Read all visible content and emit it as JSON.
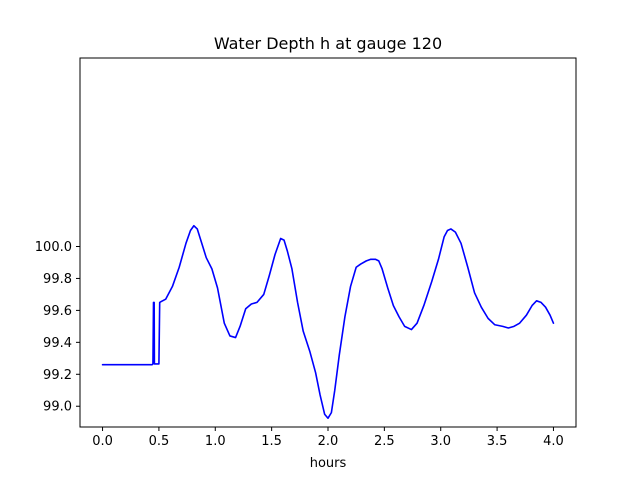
{
  "chart_data": {
    "type": "line",
    "title": "Water Depth h at gauge 120",
    "xlabel": "hours",
    "ylabel": "",
    "xlim": [
      -0.2,
      4.2
    ],
    "ylim": [
      98.87,
      101.18
    ],
    "grid": false,
    "legend": "none",
    "x_ticks": [
      0.0,
      0.5,
      1.0,
      1.5,
      2.0,
      2.5,
      3.0,
      3.5,
      4.0
    ],
    "x_tick_labels": [
      "0.0",
      "0.5",
      "1.0",
      "1.5",
      "2.0",
      "2.5",
      "3.0",
      "3.5",
      "4.0"
    ],
    "y_ticks": [
      99.0,
      99.2,
      99.4,
      99.6,
      99.8,
      100.0
    ],
    "y_tick_labels": [
      "99.0",
      "99.2",
      "99.4",
      "99.6",
      "99.8",
      "100.0"
    ],
    "series": [
      {
        "color": "#0000ff",
        "x": [
          0.0,
          0.44,
          0.447,
          0.452,
          0.458,
          0.46,
          0.5,
          0.507,
          0.52,
          0.56,
          0.62,
          0.68,
          0.74,
          0.78,
          0.81,
          0.84,
          0.88,
          0.92,
          0.97,
          1.02,
          1.08,
          1.13,
          1.18,
          1.22,
          1.27,
          1.32,
          1.37,
          1.43,
          1.48,
          1.53,
          1.58,
          1.61,
          1.64,
          1.68,
          1.73,
          1.78,
          1.84,
          1.89,
          1.93,
          1.97,
          2.0,
          2.03,
          2.06,
          2.1,
          2.15,
          2.2,
          2.25,
          2.29,
          2.34,
          2.38,
          2.42,
          2.45,
          2.48,
          2.53,
          2.58,
          2.63,
          2.68,
          2.74,
          2.79,
          2.85,
          2.92,
          2.98,
          3.03,
          3.06,
          3.09,
          3.13,
          3.18,
          3.24,
          3.3,
          3.36,
          3.42,
          3.48,
          3.55,
          3.6,
          3.65,
          3.7,
          3.76,
          3.81,
          3.85,
          3.89,
          3.93,
          3.97,
          4.0
        ],
        "y": [
          99.26,
          99.26,
          99.265,
          99.65,
          99.65,
          99.265,
          99.265,
          99.65,
          99.655,
          99.67,
          99.75,
          99.87,
          100.02,
          100.1,
          100.13,
          100.11,
          100.02,
          99.93,
          99.86,
          99.74,
          99.52,
          99.44,
          99.43,
          99.5,
          99.61,
          99.64,
          99.65,
          99.7,
          99.82,
          99.95,
          100.05,
          100.04,
          99.97,
          99.86,
          99.65,
          99.47,
          99.34,
          99.21,
          99.07,
          98.95,
          98.925,
          98.96,
          99.1,
          99.32,
          99.56,
          99.75,
          99.87,
          99.89,
          99.91,
          99.92,
          99.92,
          99.91,
          99.86,
          99.74,
          99.63,
          99.56,
          99.5,
          99.48,
          99.52,
          99.63,
          99.78,
          99.92,
          100.06,
          100.1,
          100.11,
          100.09,
          100.02,
          99.87,
          99.71,
          99.62,
          99.55,
          99.51,
          99.5,
          99.49,
          99.5,
          99.52,
          99.57,
          99.63,
          99.66,
          99.65,
          99.62,
          99.57,
          99.52
        ]
      }
    ]
  }
}
